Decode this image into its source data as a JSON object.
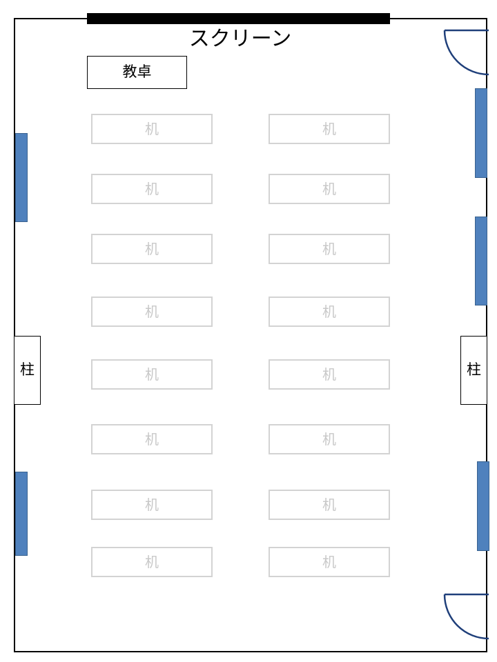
{
  "room": {
    "screen_label": "スクリーン",
    "teacher_desk_label": "教卓",
    "desk_label": "机",
    "desk_rows": 8,
    "desk_columns": 2,
    "pillar_left_label": "柱",
    "pillar_right_label": "柱"
  },
  "colors": {
    "window_fill": "#4f81bd",
    "desk_outline": "#d3d3d3",
    "door_arc": "#1f3f7a"
  }
}
